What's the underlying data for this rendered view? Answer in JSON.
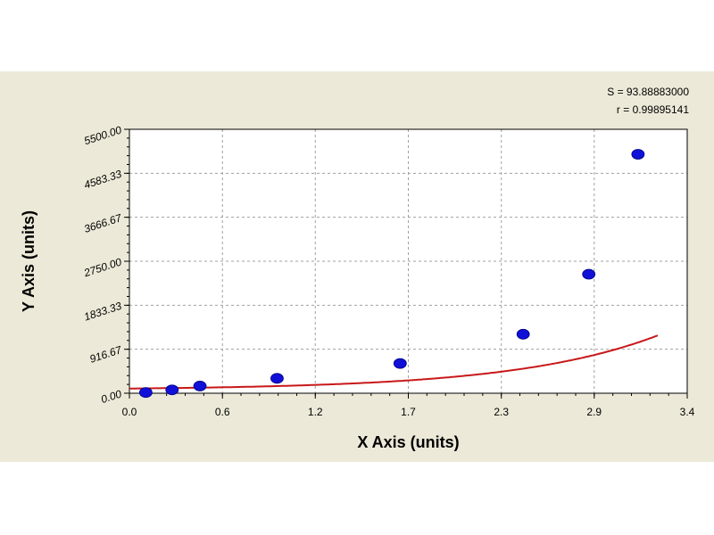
{
  "stats": {
    "s_text": "S = 93.88883000",
    "r_text": "r = 0.99895141"
  },
  "chart_data": {
    "type": "scatter",
    "title": "",
    "xlabel": "X Axis (units)",
    "ylabel": "Y Axis (units)",
    "xlim": [
      0.0,
      3.4
    ],
    "ylim": [
      0.0,
      5500.0
    ],
    "xticks": [
      "0.0",
      "0.6",
      "1.2",
      "1.7",
      "2.3",
      "2.9",
      "3.4"
    ],
    "xtick_values": [
      0.0,
      0.567,
      1.133,
      1.7,
      2.267,
      2.833,
      3.4
    ],
    "yticks": [
      "0.00",
      "916.67",
      "1833.33",
      "2750.00",
      "3666.67",
      "4583.33",
      "5500.00"
    ],
    "ytick_values": [
      0.0,
      916.67,
      1833.33,
      2750.0,
      3666.67,
      4583.33,
      5500.0
    ],
    "grid": true,
    "series": [
      {
        "marker": "circle",
        "color": "#1010d8",
        "points": [
          {
            "x": 0.1,
            "y": 15
          },
          {
            "x": 0.26,
            "y": 70
          },
          {
            "x": 0.43,
            "y": 150
          },
          {
            "x": 0.9,
            "y": 310
          },
          {
            "x": 1.65,
            "y": 620
          },
          {
            "x": 2.4,
            "y": 1230
          },
          {
            "x": 2.8,
            "y": 2480
          },
          {
            "x": 3.1,
            "y": 4980
          }
        ]
      },
      {
        "type": "line",
        "color": "#c8181a",
        "fit": "exponential",
        "fit_params": {
          "a": 28,
          "b": 0.87,
          "c": 70
        }
      }
    ]
  }
}
